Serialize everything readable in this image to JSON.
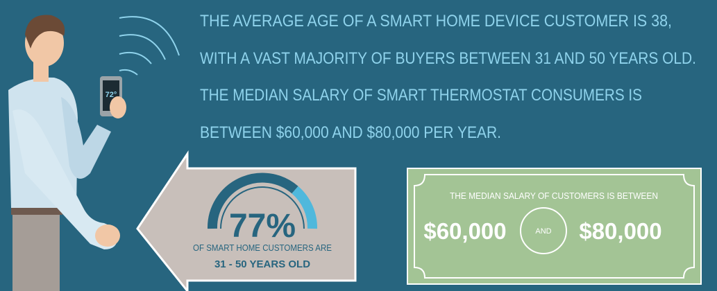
{
  "header": {
    "lines": [
      "THE AVERAGE AGE OF A SMART HOME DEVICE CUSTOMER IS 38,",
      "WITH A VAST MAJORITY OF BUYERS BETWEEN 31 AND 50 YEARS OLD.",
      "THE MEDIAN SALARY OF SMART THERMOSTAT CONSUMERS IS",
      "BETWEEN $60,000 AND $80,000 PER YEAR."
    ]
  },
  "phone": {
    "screen": "72°"
  },
  "age_callout": {
    "percent": "77%",
    "caption": "OF SMART HOME CUSTOMERS ARE",
    "range": "31 - 50 YEARS OLD"
  },
  "salary_bill": {
    "title": "THE MEDIAN SALARY OF CUSTOMERS IS BETWEEN",
    "low": "$60,000",
    "joiner": "AND",
    "high": "$80,000"
  }
}
